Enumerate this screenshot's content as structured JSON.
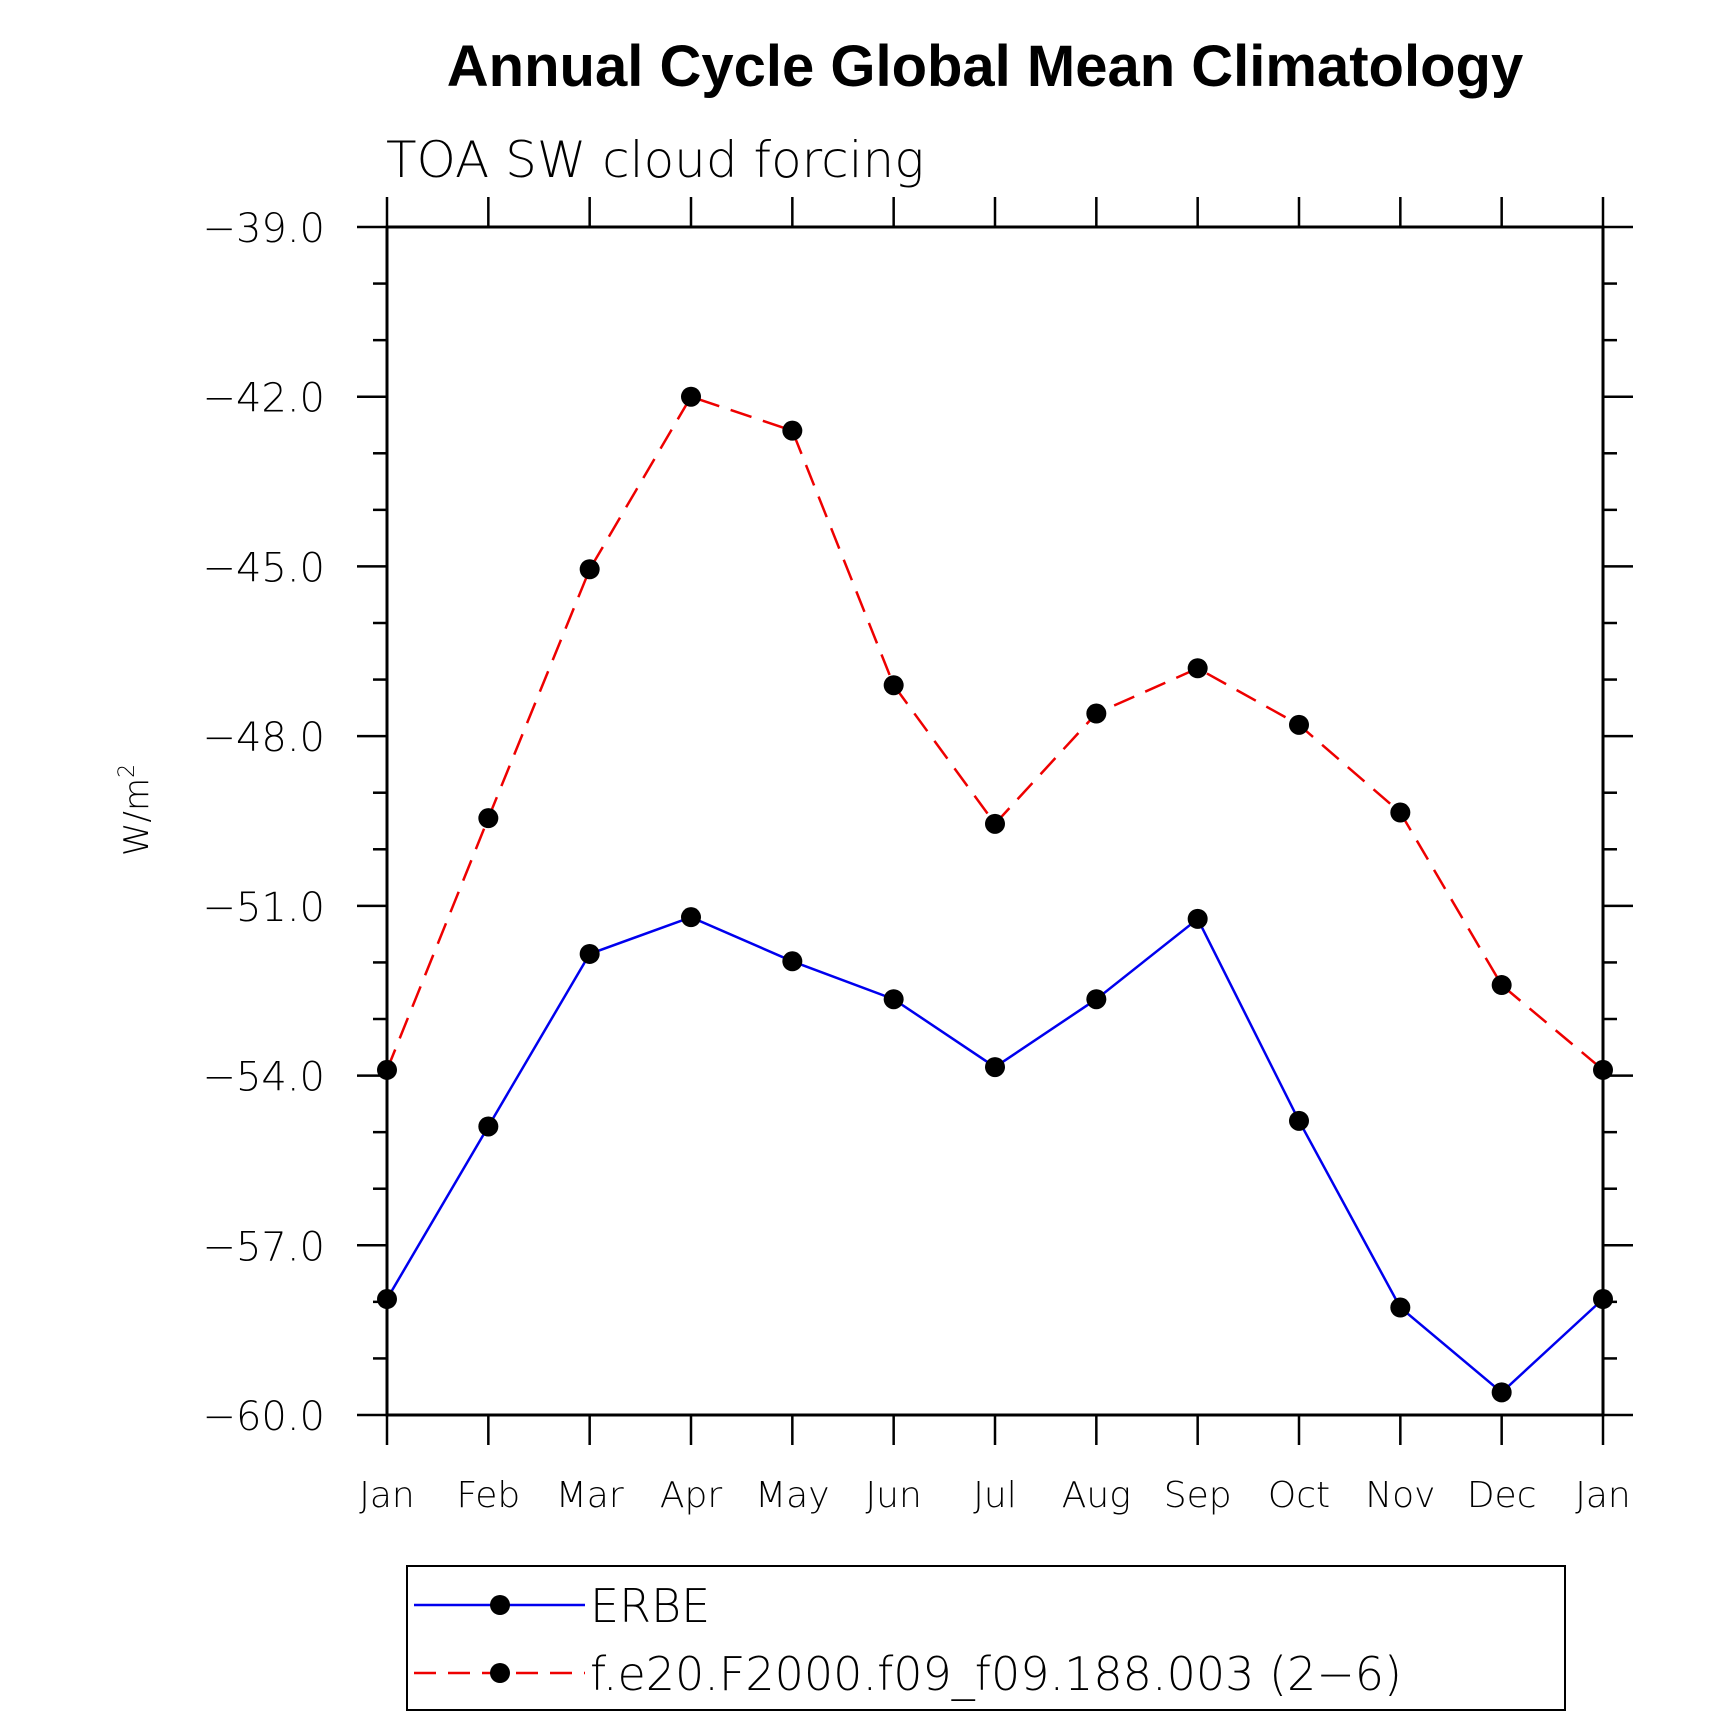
{
  "chart_data": {
    "type": "line",
    "title": "Annual Cycle Global Mean Climatology",
    "subtitle": "TOA SW cloud forcing",
    "ylabel": "W/m",
    "ylabel_superscript": "2",
    "xlabel": "",
    "categories": [
      "Jan",
      "Feb",
      "Mar",
      "Apr",
      "May",
      "Jun",
      "Jul",
      "Aug",
      "Sep",
      "Oct",
      "Nov",
      "Dec",
      "Jan"
    ],
    "ylim": [
      -60.0,
      -39.0
    ],
    "yticks": [
      -39.0,
      -42.0,
      -45.0,
      -48.0,
      -51.0,
      -54.0,
      -57.0,
      -60.0
    ],
    "ytick_labels": [
      "−39.0",
      "−42.0",
      "−45.0",
      "−48.0",
      "−51.0",
      "−54.0",
      "−57.0",
      "−60.0"
    ],
    "grid": false,
    "legend_position": "bottom",
    "series": [
      {
        "name": "ERBE",
        "color": "#0000ee",
        "style": "solid",
        "marker": "circle",
        "values": [
          -57.95,
          -54.9,
          -51.85,
          -51.2,
          -51.98,
          -52.65,
          -53.85,
          -52.65,
          -51.23,
          -54.8,
          -58.1,
          -59.6,
          -57.95
        ]
      },
      {
        "name": "f.e20.F2000.f09_f09.188.003 (2−6)",
        "color": "#ee0000",
        "style": "dashed",
        "marker": "circle",
        "values": [
          -53.9,
          -49.45,
          -45.05,
          -42.0,
          -42.6,
          -47.1,
          -49.55,
          -47.6,
          -46.8,
          -47.8,
          -49.35,
          -52.4,
          -53.9
        ]
      }
    ]
  }
}
